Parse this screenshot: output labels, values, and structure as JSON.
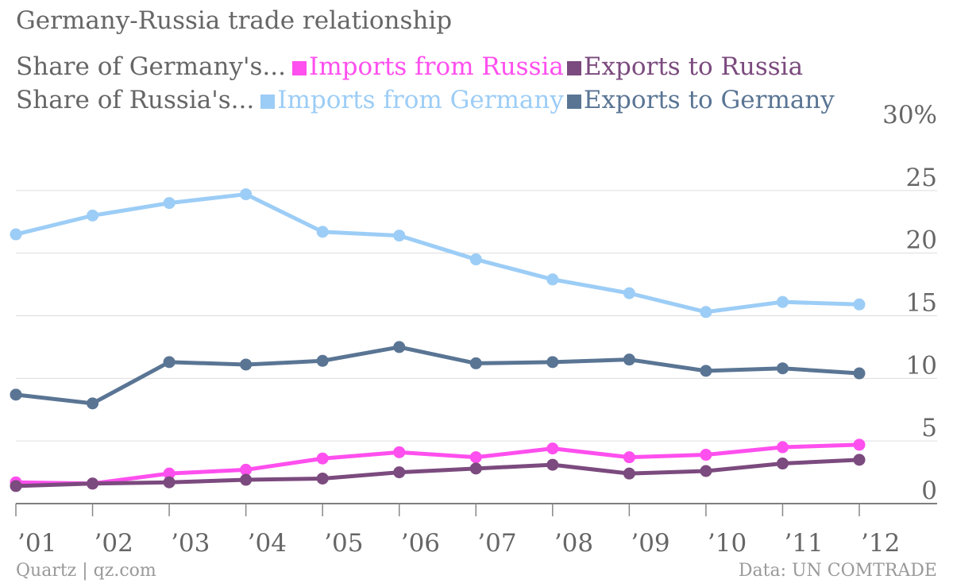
{
  "chart_data": {
    "type": "line",
    "title": "Germany-Russia trade relationship",
    "legend_groups": [
      {
        "label": "Share of Germany's...",
        "series_indices": [
          0,
          1
        ]
      },
      {
        "label": "Share of Russia's...",
        "series_indices": [
          2,
          3
        ]
      }
    ],
    "categories": [
      "’01",
      "’02",
      "’03",
      "’04",
      "’05",
      "’06",
      "’07",
      "’08",
      "’09",
      "’10",
      "’11",
      "’12"
    ],
    "series": [
      {
        "name": "Imports from Russia",
        "color": "#ff4fee",
        "values": [
          1.7,
          1.6,
          2.4,
          2.7,
          3.6,
          4.1,
          3.7,
          4.4,
          3.7,
          3.9,
          4.5,
          4.7
        ]
      },
      {
        "name": "Exports to Russia",
        "color": "#7b4a7e",
        "values": [
          1.4,
          1.6,
          1.7,
          1.9,
          2.0,
          2.5,
          2.8,
          3.1,
          2.4,
          2.6,
          3.2,
          3.5
        ]
      },
      {
        "name": "Imports from Germany",
        "color": "#9ccdf6",
        "values": [
          21.5,
          23.0,
          24.0,
          24.7,
          21.7,
          21.4,
          19.5,
          17.9,
          16.8,
          15.3,
          16.1,
          15.9
        ]
      },
      {
        "name": "Exports to Germany",
        "color": "#5a7594",
        "values": [
          8.7,
          8.0,
          11.3,
          11.1,
          11.4,
          12.5,
          11.2,
          11.3,
          11.5,
          10.6,
          10.8,
          10.4
        ]
      }
    ],
    "y_ticks": [
      {
        "value": 0,
        "label": "0"
      },
      {
        "value": 5,
        "label": "5"
      },
      {
        "value": 10,
        "label": "10"
      },
      {
        "value": 15,
        "label": "15"
      },
      {
        "value": 20,
        "label": "20"
      },
      {
        "value": 25,
        "label": "25"
      },
      {
        "value": 30,
        "label": "30%"
      }
    ],
    "ylim": [
      0,
      30
    ],
    "grid": true,
    "y_axis_side": "right",
    "legend_position": "top-left"
  },
  "footer": {
    "source_left": "Quartz | qz.com",
    "source_right": "Data: UN COMTRADE"
  }
}
